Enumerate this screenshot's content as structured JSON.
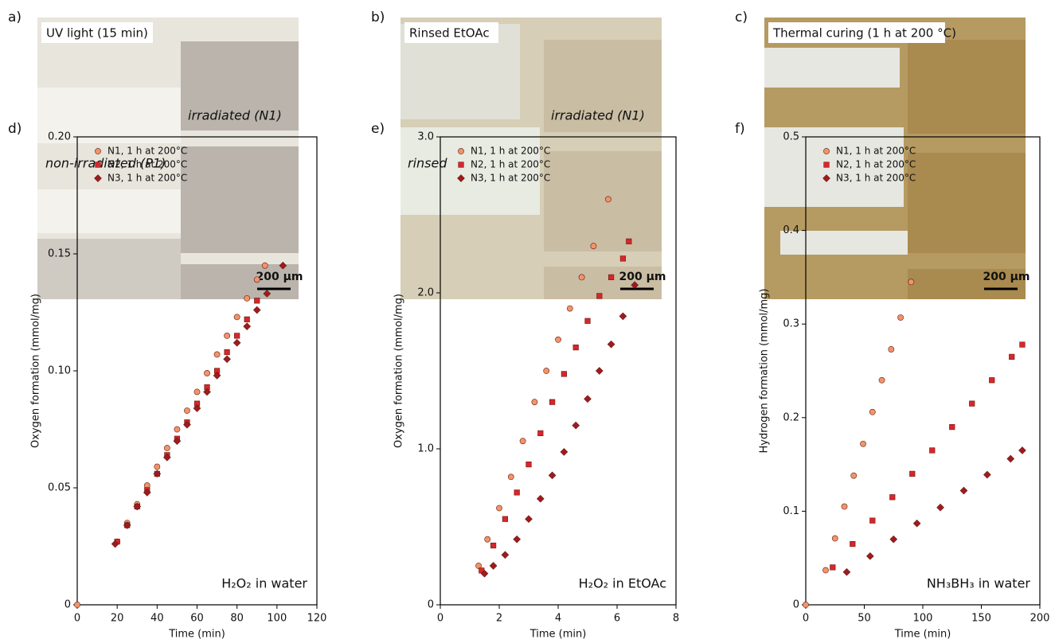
{
  "photos": [
    {
      "letter": "a)",
      "caption": "UV light (15 min)",
      "annotations": [
        "irradiated (N1)",
        "non-irradiated (P1)"
      ],
      "scale": "200 µm"
    },
    {
      "letter": "b)",
      "caption": "Rinsed EtOAc",
      "annotations": [
        "irradiated (N1)",
        "rinsed"
      ],
      "scale": "200 µm"
    },
    {
      "letter": "c)",
      "caption": "Thermal curing (1 h at 200 °C)",
      "scale": "200 µm"
    }
  ],
  "chart_data": [
    {
      "type": "scatter",
      "letter": "d)",
      "annotation": "H₂O₂ in water",
      "x_label": "Time (min)",
      "y_label": "Oxygen formation (mmol/mg)",
      "xlim": [
        0,
        120
      ],
      "xticks": [
        0,
        20,
        40,
        60,
        80,
        100,
        120
      ],
      "ylim": [
        0,
        0.2
      ],
      "yticks": [
        0,
        0.05,
        {
          "value": 0.1,
          "label": "0.10"
        },
        0.15,
        {
          "value": 0.2,
          "label": "0.20"
        }
      ],
      "legend": "upper left",
      "series": [
        {
          "name": "N1, 1 h at 200°C",
          "color": "#f0946a",
          "marker": "circle",
          "x": [
            0,
            20,
            25,
            30,
            35,
            40,
            45,
            50,
            55,
            60,
            65,
            70,
            75,
            80,
            85,
            90,
            94
          ],
          "values": [
            0,
            0.027,
            0.035,
            0.043,
            0.051,
            0.059,
            0.067,
            0.075,
            0.083,
            0.091,
            0.099,
            0.107,
            0.115,
            0.123,
            0.131,
            0.139,
            0.145
          ]
        },
        {
          "name": "N2, 1 h at 200°C",
          "color": "#d8262b",
          "marker": "square",
          "x": [
            20,
            25,
            30,
            35,
            40,
            45,
            50,
            55,
            60,
            65,
            70,
            75,
            80,
            85,
            90
          ],
          "values": [
            0.027,
            0.034,
            0.042,
            0.049,
            0.056,
            0.064,
            0.071,
            0.078,
            0.086,
            0.093,
            0.1,
            0.108,
            0.115,
            0.122,
            0.13
          ]
        },
        {
          "name": "N3, 1 h at 200°C",
          "color": "#9e1b1f",
          "marker": "diamond",
          "x": [
            19,
            25,
            30,
            35,
            40,
            45,
            50,
            55,
            60,
            65,
            70,
            75,
            80,
            85,
            90,
            95,
            103
          ],
          "values": [
            0.026,
            0.034,
            0.042,
            0.048,
            0.056,
            0.063,
            0.07,
            0.077,
            0.084,
            0.091,
            0.098,
            0.105,
            0.112,
            0.119,
            0.126,
            0.133,
            0.145
          ]
        }
      ]
    },
    {
      "type": "scatter",
      "letter": "e)",
      "annotation": "H₂O₂ in EtOAc",
      "x_label": "Time (min)",
      "y_label": "Oxygen formation (mmol/mg)",
      "xlim": [
        0,
        8
      ],
      "xticks": [
        0,
        2,
        4,
        6,
        8
      ],
      "ylim": [
        0,
        3
      ],
      "yticks": [
        0,
        {
          "value": 1,
          "label": "1.0"
        },
        {
          "value": 2,
          "label": "2.0"
        },
        {
          "value": 3,
          "label": "3.0"
        }
      ],
      "legend": "upper left",
      "series": [
        {
          "name": "N1, 1 h at 200°C",
          "color": "#f0946a",
          "marker": "circle",
          "x": [
            1.3,
            1.6,
            2.0,
            2.4,
            2.8,
            3.2,
            3.6,
            4.0,
            4.4,
            4.8,
            5.2,
            5.7
          ],
          "values": [
            0.25,
            0.42,
            0.62,
            0.82,
            1.05,
            1.3,
            1.5,
            1.7,
            1.9,
            2.1,
            2.3,
            2.6
          ]
        },
        {
          "name": "N2, 1 h at 200°C",
          "color": "#d8262b",
          "marker": "square",
          "x": [
            1.4,
            1.8,
            2.2,
            2.6,
            3.0,
            3.4,
            3.8,
            4.2,
            4.6,
            5.0,
            5.4,
            5.8,
            6.2,
            6.4
          ],
          "values": [
            0.22,
            0.38,
            0.55,
            0.72,
            0.9,
            1.1,
            1.3,
            1.48,
            1.65,
            1.82,
            1.98,
            2.1,
            2.22,
            2.33
          ]
        },
        {
          "name": "N3, 1 h at 200°C",
          "color": "#9e1b1f",
          "marker": "diamond",
          "x": [
            1.5,
            1.8,
            2.2,
            2.6,
            3.0,
            3.4,
            3.8,
            4.2,
            4.6,
            5.0,
            5.4,
            5.8,
            6.2,
            6.6
          ],
          "values": [
            0.2,
            0.25,
            0.32,
            0.42,
            0.55,
            0.68,
            0.83,
            0.98,
            1.15,
            1.32,
            1.5,
            1.67,
            1.85,
            2.05
          ]
        }
      ]
    },
    {
      "type": "scatter",
      "letter": "f)",
      "annotation": "NH₃BH₃ in water",
      "x_label": "Time (min)",
      "y_label": "Hydrogen formation (mmol/mg)",
      "xlim": [
        0,
        200
      ],
      "xticks": [
        0,
        50,
        100,
        150,
        200
      ],
      "ylim": [
        0,
        0.5
      ],
      "yticks": [
        0,
        0.1,
        0.2,
        0.3,
        0.4,
        0.5
      ],
      "legend": "upper left",
      "series": [
        {
          "name": "N1, 1 h at 200°C",
          "color": "#f0946a",
          "marker": "circle",
          "x": [
            0,
            17,
            25,
            33,
            41,
            49,
            57,
            65,
            73,
            81,
            90
          ],
          "values": [
            0,
            0.037,
            0.071,
            0.105,
            0.138,
            0.172,
            0.206,
            0.24,
            0.273,
            0.307,
            0.345
          ]
        },
        {
          "name": "N2, 1 h at 200°C",
          "color": "#d8262b",
          "marker": "square",
          "x": [
            23,
            40,
            57,
            74,
            91,
            108,
            125,
            142,
            159,
            176,
            185
          ],
          "values": [
            0.04,
            0.065,
            0.09,
            0.115,
            0.14,
            0.165,
            0.19,
            0.215,
            0.24,
            0.265,
            0.278
          ]
        },
        {
          "name": "N3, 1 h at 200°C",
          "color": "#9e1b1f",
          "marker": "diamond",
          "x": [
            35,
            55,
            75,
            95,
            115,
            135,
            155,
            175,
            185
          ],
          "values": [
            0.035,
            0.052,
            0.07,
            0.087,
            0.104,
            0.122,
            0.139,
            0.156,
            0.165
          ]
        }
      ]
    }
  ]
}
